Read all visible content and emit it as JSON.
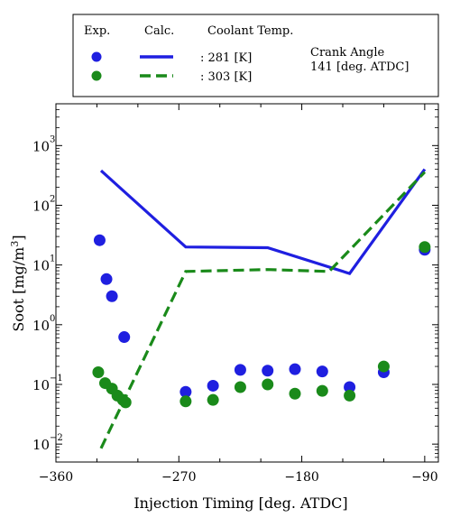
{
  "legend": {
    "col_exp": "Exp.",
    "col_calc": "Calc.",
    "col_temp": "Coolant Temp.",
    "rows": [
      {
        "label": ": 281 [K]",
        "color": "#1f1fe0"
      },
      {
        "label": ": 303 [K]",
        "color": "#1a8a1a"
      }
    ],
    "note_line1": "Crank Angle",
    "note_line2": "141 [deg. ATDC]"
  },
  "axes": {
    "xlabel": "Injection Timing [deg. ATDC]",
    "ylabel_main": "Soot [mg/m",
    "ylabel_sup": "3",
    "ylabel_close": "]"
  },
  "chart_data": {
    "type": "scatter",
    "xlim": [
      -360,
      -80
    ],
    "ylim_log10": [
      -2.3,
      3.7
    ],
    "yscale": "log",
    "grid": false,
    "legend_placement": "top",
    "xticks": [
      {
        "value": -360,
        "label": "−360"
      },
      {
        "value": -270,
        "label": "−270"
      },
      {
        "value": -180,
        "label": "−180"
      },
      {
        "value": -90,
        "label": "−90"
      }
    ],
    "yticks": [
      {
        "exp": -2,
        "base": "10",
        "sup": "−2"
      },
      {
        "exp": -1,
        "base": "10",
        "sup": "−1"
      },
      {
        "exp": 0,
        "base": "10",
        "sup": "0"
      },
      {
        "exp": 1,
        "base": "10",
        "sup": "1"
      },
      {
        "exp": 2,
        "base": "10",
        "sup": "2"
      },
      {
        "exp": 3,
        "base": "10",
        "sup": "3"
      }
    ],
    "series": [
      {
        "name": ": 281 [K]",
        "kind": "exp",
        "color": "#1f1fe0",
        "x": [
          -328,
          -323,
          -319,
          -310,
          -265,
          -245,
          -225,
          -205,
          -185,
          -165,
          -145,
          -120,
          -90
        ],
        "y": [
          26,
          5.8,
          3.0,
          0.62,
          0.075,
          0.095,
          0.175,
          0.17,
          0.18,
          0.165,
          0.09,
          0.16,
          18
        ]
      },
      {
        "name": ": 303 [K]",
        "kind": "exp",
        "color": "#1a8a1a",
        "x": [
          -329,
          -324,
          -319,
          -315,
          -311,
          -309,
          -265,
          -245,
          -225,
          -205,
          -185,
          -165,
          -145,
          -120,
          -90
        ],
        "y": [
          0.16,
          0.105,
          0.085,
          0.065,
          0.055,
          0.05,
          0.052,
          0.055,
          0.09,
          0.1,
          0.07,
          0.078,
          0.065,
          0.2,
          20
        ]
      },
      {
        "name": ": 281 [K]",
        "kind": "calc",
        "color": "#1f1fe0",
        "dash": false,
        "x": [
          -327,
          -265,
          -205,
          -145,
          -90
        ],
        "y": [
          380,
          20,
          19.5,
          7.2,
          400
        ]
      },
      {
        "name": ": 303 [K]",
        "kind": "calc",
        "color": "#1a8a1a",
        "dash": true,
        "x": [
          -327,
          -265,
          -205,
          -160,
          -90
        ],
        "y": [
          0.0085,
          7.8,
          8.4,
          7.8,
          360
        ]
      }
    ]
  }
}
